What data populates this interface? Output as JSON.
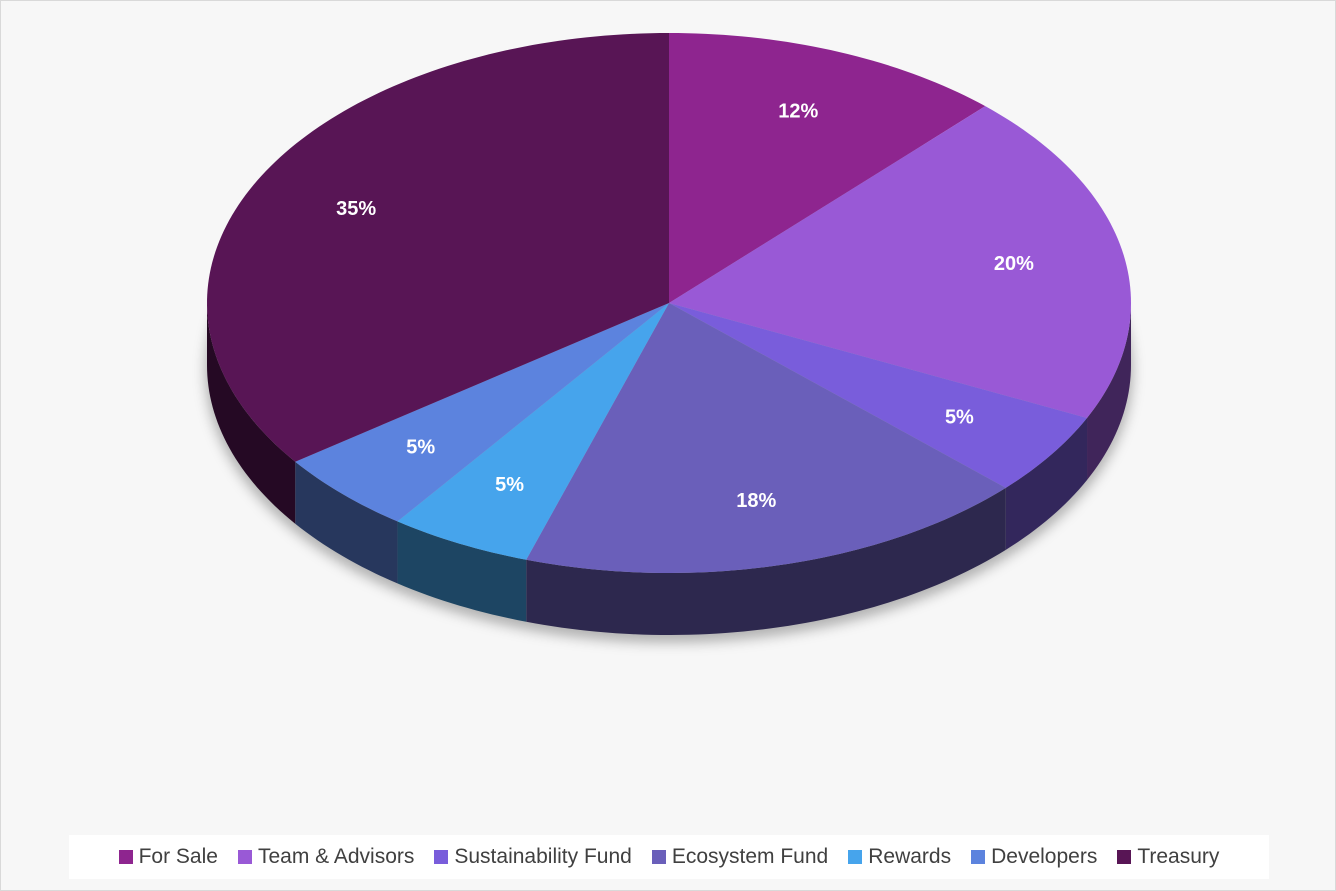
{
  "chart_data": {
    "type": "pie",
    "style": "3d",
    "start_angle_deg": 0,
    "direction": "clockwise",
    "title": "",
    "show_value_labels": true,
    "legend_position": "bottom",
    "slices": [
      {
        "label": "For Sale",
        "value": 12,
        "display": "12%",
        "color": "#8e258f"
      },
      {
        "label": "Team & Advisors",
        "value": 20,
        "display": "20%",
        "color": "#9959d6"
      },
      {
        "label": "Sustainability Fund",
        "value": 5,
        "display": "5%",
        "color": "#795ddb"
      },
      {
        "label": "Ecosystem Fund",
        "value": 18,
        "display": "18%",
        "color": "#6a5fba"
      },
      {
        "label": "Rewards",
        "value": 5,
        "display": "5%",
        "color": "#46a4ec"
      },
      {
        "label": "Developers",
        "value": 5,
        "display": "5%",
        "color": "#5c83de"
      },
      {
        "label": "Treasury",
        "value": 35,
        "display": "35%",
        "color": "#581555"
      }
    ]
  }
}
